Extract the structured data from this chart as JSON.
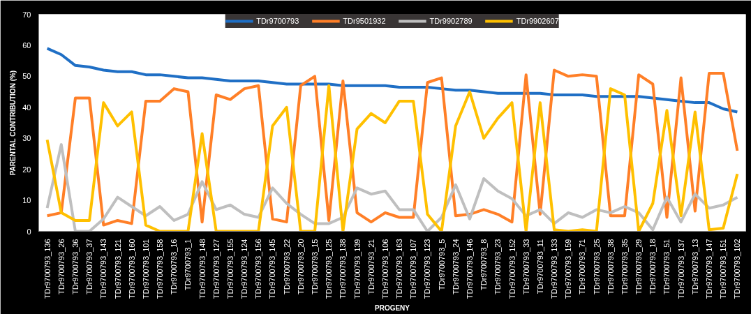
{
  "chart_data": {
    "type": "line",
    "xlabel": "PROGENY",
    "ylabel": "PARENTAL CONTRIBUTION (%)",
    "categories": [
      "TDr9700793_136",
      "TDr9700793_26",
      "TDr9700793_36",
      "TDr9700793_37",
      "TDr9700793_143",
      "TDr9700793_121",
      "TDr9700793_160",
      "TDr9700793_101",
      "TDr9700793_158",
      "TDr9700793_16",
      "TDr9700793_1",
      "TDr9700793_148",
      "TDr9700793_127",
      "TDr9700793_155",
      "TDr9700793_124",
      "TDr9700793_156",
      "TDr9700793_145",
      "TDr9700793_22",
      "TDr9700793_20",
      "TDr9700793_15",
      "TDr9700793_125",
      "TDr9700793_138",
      "TDr9700793_139",
      "TDr9700793_21",
      "TDr9700793_106",
      "TDr9700793_163",
      "TDr9700793_107",
      "TDr9700793_123",
      "TDr9700793_5",
      "TDr9700793_24",
      "TDr9700793_146",
      "TDr9700793_8",
      "TDr9700793_23",
      "TDr9700793_152",
      "TDr9700793_33",
      "TDr9700793_11",
      "TDr9700793_133",
      "TDr9700793_159",
      "TDr9700793_71",
      "TDr9700793_25",
      "TDr9700793_38",
      "TDr9700793_35",
      "TDr9700793_29",
      "TDr9700793_18",
      "TDr9700793_51",
      "TDr9700793_137",
      "TDr9700793_13",
      "TDr9700793_147",
      "TDr9700793_151",
      "TDr9700793_102"
    ],
    "series": [
      {
        "name": "TDr9700793",
        "color": "#1f6fc5",
        "values": [
          59,
          57,
          53.5,
          53,
          52,
          51.5,
          51.5,
          50.5,
          50.5,
          50,
          49.5,
          49.5,
          49,
          48.5,
          48.5,
          48.5,
          48,
          47.5,
          47.5,
          47.5,
          47.5,
          47,
          47,
          47,
          47,
          46.5,
          46.5,
          46.5,
          46,
          45.5,
          45.5,
          45,
          44.5,
          44.5,
          44.5,
          44.5,
          44,
          44,
          44,
          43.5,
          43.5,
          43.5,
          43.5,
          43,
          42.5,
          42,
          41.5,
          41.5,
          39.5,
          38.5
        ]
      },
      {
        "name": "TDr9501932",
        "color": "#ff7f27",
        "values": [
          5,
          6,
          43,
          43,
          2,
          3.5,
          2.5,
          42,
          42,
          46,
          45,
          3,
          44,
          42.5,
          46,
          47,
          4,
          3,
          47,
          50,
          3.5,
          48.5,
          6,
          3,
          6,
          4.5,
          4.5,
          48,
          49.5,
          5,
          5.5,
          7,
          5.5,
          3,
          50.5,
          5.5,
          52,
          50,
          50.5,
          50,
          5,
          5,
          50.5,
          47.5,
          4.5,
          49.5,
          6.5,
          51,
          51,
          26
        ]
      },
      {
        "name": "TDr9902789",
        "color": "#bfbfbf",
        "values": [
          7.5,
          28,
          0,
          0,
          4,
          11,
          8,
          5,
          8,
          3.5,
          5.5,
          16,
          7,
          8.5,
          5.5,
          4.5,
          14,
          9,
          5.5,
          2.5,
          2.5,
          4.5,
          14,
          12,
          13,
          7,
          7,
          0,
          4.5,
          15,
          4,
          17,
          13,
          10.5,
          5,
          7,
          2.5,
          6,
          4.5,
          7,
          6,
          8,
          6,
          0.5,
          11,
          3,
          12,
          7.5,
          8.5,
          11
        ]
      },
      {
        "name": "TDr9902607",
        "color": "#ffc000",
        "values": [
          29.5,
          6,
          3.5,
          3.5,
          41.5,
          34,
          38.5,
          2,
          0,
          0,
          0,
          31.5,
          0,
          0,
          0,
          0,
          34,
          40,
          0,
          0,
          47,
          0,
          33,
          38,
          35,
          42,
          42,
          5.5,
          0,
          34,
          45,
          30,
          36.5,
          41.5,
          0,
          41.5,
          0.5,
          0,
          0.5,
          0,
          46,
          44,
          0,
          9,
          39,
          5,
          38.5,
          0.5,
          1,
          18.5
        ]
      }
    ],
    "ylim": [
      0,
      70
    ],
    "yticks": [
      0,
      10,
      20,
      30,
      40,
      50,
      60,
      70
    ],
    "grid": false,
    "legend": "top",
    "marker": "none",
    "line_style": "solid"
  }
}
